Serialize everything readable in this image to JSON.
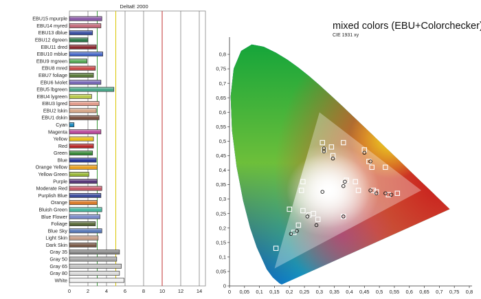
{
  "chart_data": [
    {
      "type": "bar",
      "orientation": "horizontal",
      "title": "DeltaE 2000",
      "xlim": [
        0,
        14
      ],
      "xticks": [
        "0",
        "2",
        "4",
        "6",
        "8",
        "10",
        "12",
        "14"
      ],
      "reference_lines": [
        {
          "x": 3,
          "color": "#3a9a3a"
        },
        {
          "x": 5,
          "color": "#d9c400"
        },
        {
          "x": 10,
          "color": "#c03030"
        }
      ],
      "categories": [
        "EBU15 mpurple",
        "EBU14 myred",
        "EBU13 dblue",
        "EBU12 dgreen",
        "EBU11 dred",
        "EBU10 mblue",
        "EBU9 mgreen",
        "EBU8 mred",
        "EBU7 foliage",
        "EBU6 lviolet",
        "EBU5 lbgreen",
        "EBU4 lygreen",
        "EBU3 lgred",
        "EBU2 lskin",
        "EBU1 dskin",
        "Cyan",
        "Magenta",
        "Yellow",
        "Red",
        "Green",
        "Blue",
        "Orange Yellow",
        "Yellow Green",
        "Purple",
        "Moderate Red",
        "Purplish Blue",
        "Orange",
        "Bluish Green",
        "Blue Flower",
        "Foliage",
        "Blue Sky",
        "Light Skin",
        "Dark Skin",
        "Gray 35",
        "Gray 50",
        "Gray 65",
        "Gray 80",
        "White"
      ],
      "values": [
        3.5,
        3.4,
        2.5,
        2.0,
        2.9,
        3.6,
        1.9,
        2.8,
        2.6,
        3.4,
        4.8,
        2.4,
        3.2,
        2.9,
        3.2,
        0.5,
        3.4,
        2.6,
        2.6,
        2.5,
        2.9,
        3.0,
        2.1,
        3.0,
        3.5,
        3.4,
        3.0,
        3.5,
        3.3,
        2.8,
        3.5,
        3.1,
        2.9,
        5.4,
        5.1,
        5.6,
        5.4,
        5.9
      ],
      "colors": [
        "#8a5aa8",
        "#c46a7a",
        "#3a4fa0",
        "#2e7a4a",
        "#8a2a30",
        "#4a6ac8",
        "#5aaa5a",
        "#c84a4a",
        "#5a7a3a",
        "#7a6ab8",
        "#4aa88a",
        "#b8c84a",
        "#e09a8a",
        "#d8a88a",
        "#7a5040",
        "#1a8ac0",
        "#b84a9a",
        "#e8c020",
        "#b82a2a",
        "#3a8a3a",
        "#2a3a9a",
        "#e8a020",
        "#9ab83a",
        "#5a3a7a",
        "#c85a6a",
        "#3a4a9a",
        "#d87a2a",
        "#4ab8a0",
        "#7a8ac8",
        "#5a6a3a",
        "#5a7ab8",
        "#c8a08a",
        "#7a5a48",
        "#8a8a8a",
        "#a8a8a8",
        "#c4c4c4",
        "#dcdcdc",
        "#f2f2f2"
      ]
    },
    {
      "type": "scatter",
      "title": "mixed colors (EBU+Colorchecker)",
      "subtitle": "CIE 1931 xy",
      "xlim": [
        0,
        0.8
      ],
      "ylim": [
        0,
        0.85
      ],
      "xticks": [
        "0",
        "0,05",
        "0,1",
        "0,15",
        "0,2",
        "0,25",
        "0,3",
        "0,35",
        "0,4",
        "0,45",
        "0,5",
        "0,55",
        "0,6",
        "0,65",
        "0,7",
        "0,75",
        "0,8"
      ],
      "yticks": [
        "0",
        "0,05",
        "0,1",
        "0,15",
        "0,2",
        "0,25",
        "0,3",
        "0,35",
        "0,4",
        "0,45",
        "0,5",
        "0,55",
        "0,6",
        "0,65",
        "0,7",
        "0,75",
        "0,8"
      ],
      "gamut_triangle": [
        [
          0.64,
          0.33
        ],
        [
          0.3,
          0.6
        ],
        [
          0.15,
          0.06
        ]
      ],
      "series": [
        {
          "marker": "square",
          "points": [
            [
              0.155,
              0.13
            ],
            [
              0.2,
              0.265
            ],
            [
              0.215,
              0.185
            ],
            [
              0.23,
              0.21
            ],
            [
              0.245,
              0.26
            ],
            [
              0.265,
              0.245
            ],
            [
              0.28,
              0.25
            ],
            [
              0.295,
              0.23
            ],
            [
              0.24,
              0.33
            ],
            [
              0.245,
              0.36
            ],
            [
              0.31,
              0.33
            ],
            [
              0.31,
              0.495
            ],
            [
              0.315,
              0.47
            ],
            [
              0.34,
              0.48
            ],
            [
              0.345,
              0.45
            ],
            [
              0.38,
              0.355
            ],
            [
              0.38,
              0.495
            ],
            [
              0.38,
              0.24
            ],
            [
              0.39,
              0.365
            ],
            [
              0.42,
              0.36
            ],
            [
              0.43,
              0.33
            ],
            [
              0.45,
              0.47
            ],
            [
              0.465,
              0.43
            ],
            [
              0.475,
              0.41
            ],
            [
              0.48,
              0.33
            ],
            [
              0.49,
              0.325
            ],
            [
              0.52,
              0.41
            ],
            [
              0.53,
              0.315
            ],
            [
              0.56,
              0.32
            ]
          ]
        },
        {
          "marker": "circle",
          "points": [
            [
              0.205,
              0.18
            ],
            [
              0.225,
              0.19
            ],
            [
              0.26,
              0.24
            ],
            [
              0.29,
              0.21
            ],
            [
              0.31,
              0.325
            ],
            [
              0.315,
              0.475
            ],
            [
              0.315,
              0.465
            ],
            [
              0.345,
              0.44
            ],
            [
              0.38,
              0.345
            ],
            [
              0.385,
              0.36
            ],
            [
              0.38,
              0.24
            ],
            [
              0.45,
              0.46
            ],
            [
              0.47,
              0.43
            ],
            [
              0.49,
              0.32
            ],
            [
              0.47,
              0.33
            ],
            [
              0.52,
              0.32
            ],
            [
              0.54,
              0.315
            ]
          ]
        }
      ]
    }
  ]
}
